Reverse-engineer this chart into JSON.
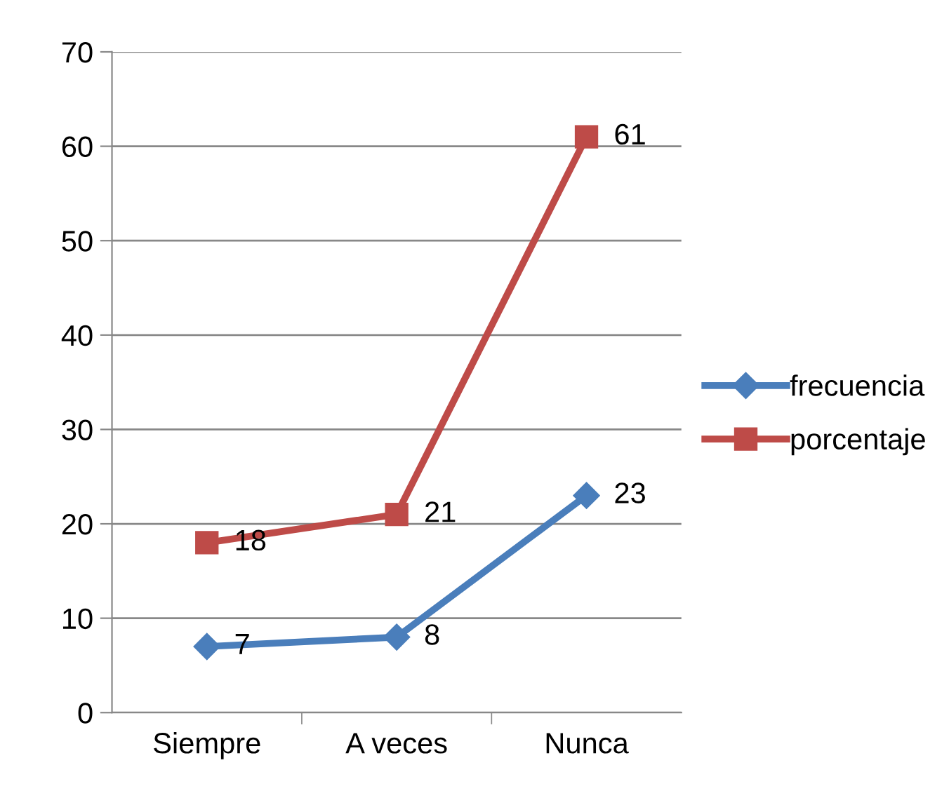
{
  "chart_data": {
    "type": "line",
    "categories": [
      "Siempre",
      "A veces",
      "Nunca"
    ],
    "series": [
      {
        "name": "frecuencia",
        "color": "#4a7ebb",
        "values": [
          7,
          8,
          23
        ],
        "marker": "diamond"
      },
      {
        "name": "porcentaje",
        "color": "#be4b48",
        "values": [
          18,
          21,
          61
        ],
        "marker": "square"
      }
    ],
    "ylim": [
      0,
      70
    ],
    "yticks": [
      0,
      10,
      20,
      30,
      40,
      50,
      60,
      70
    ],
    "grid": "y",
    "legend": "right",
    "data_labels": true,
    "line_style": "solid"
  }
}
